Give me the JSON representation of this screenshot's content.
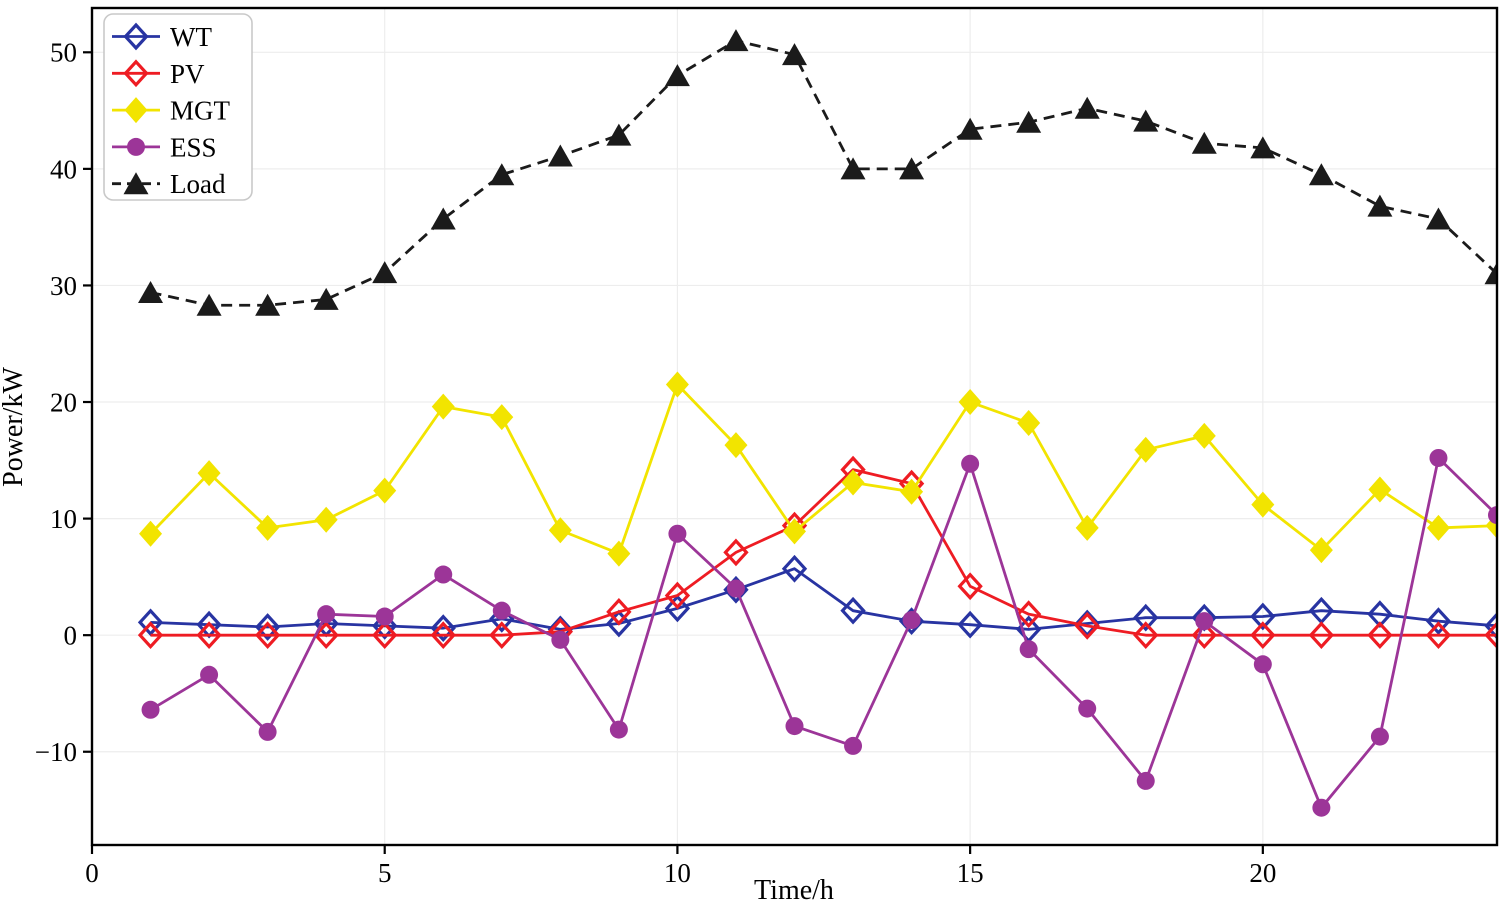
{
  "figure": {
    "type": "matplotlib-style line chart",
    "background": "#ffffff"
  },
  "chart_data": {
    "type": "line",
    "title": "",
    "xlabel": "Time/h",
    "ylabel": "Power/kW",
    "xlim": [
      0,
      24
    ],
    "ylim": [
      -18,
      53.8
    ],
    "xticks": [
      0,
      5,
      10,
      15,
      20
    ],
    "yticks": [
      -10,
      0,
      10,
      20,
      30,
      40,
      50
    ],
    "grid": true,
    "legend_position": "upper-left",
    "x": [
      1,
      2,
      3,
      4,
      5,
      6,
      7,
      8,
      9,
      10,
      11,
      12,
      13,
      14,
      15,
      16,
      17,
      18,
      19,
      20,
      21,
      22,
      23,
      24
    ],
    "series": [
      {
        "name": "WT",
        "color": "#2834a2",
        "marker": "diamond-open",
        "line": "solid",
        "values": [
          1.1,
          0.9,
          0.7,
          1.0,
          0.8,
          0.6,
          1.4,
          0.5,
          1.0,
          2.3,
          3.9,
          5.7,
          2.1,
          1.2,
          0.9,
          0.5,
          1.0,
          1.5,
          1.5,
          1.6,
          2.1,
          1.8,
          1.2,
          0.8
        ]
      },
      {
        "name": "PV",
        "color": "#ee1c23",
        "marker": "diamond-open",
        "line": "solid",
        "values": [
          0,
          0,
          0,
          0,
          0,
          0,
          0,
          0.3,
          2.0,
          3.4,
          7.1,
          9.4,
          14.2,
          13.0,
          4.2,
          1.8,
          0.8,
          0,
          0,
          0,
          0,
          0,
          0,
          0
        ]
      },
      {
        "name": "MGT",
        "color": "#f2e400",
        "marker": "diamond-filled",
        "line": "solid",
        "values": [
          8.7,
          13.9,
          9.2,
          9.9,
          12.4,
          19.6,
          18.7,
          9.0,
          7.0,
          21.5,
          16.3,
          8.9,
          13.1,
          12.3,
          20.0,
          18.2,
          9.2,
          15.9,
          17.1,
          11.2,
          7.3,
          12.5,
          9.2,
          9.4
        ]
      },
      {
        "name": "ESS",
        "color": "#9c3598",
        "marker": "circle-filled",
        "line": "solid",
        "values": [
          -6.4,
          -3.4,
          -8.3,
          1.8,
          1.6,
          5.2,
          2.1,
          -0.4,
          -8.1,
          8.7,
          4.0,
          -7.8,
          -9.5,
          1.3,
          14.7,
          -1.2,
          -6.3,
          -12.5,
          1.2,
          -2.5,
          -14.8,
          -8.7,
          15.2,
          10.3
        ]
      },
      {
        "name": "Load",
        "color": "#1b1b1b",
        "marker": "triangle-filled",
        "line": "dashed",
        "values": [
          29.4,
          28.3,
          28.3,
          28.8,
          31.1,
          35.7,
          39.5,
          41.1,
          42.9,
          48.0,
          51.0,
          49.8,
          40.0,
          40.0,
          43.4,
          44.0,
          45.2,
          44.1,
          42.2,
          41.8,
          39.5,
          36.8,
          35.7,
          31.0
        ]
      }
    ]
  },
  "style": {
    "grid_color": "#ededed",
    "spine_color": "#000000",
    "tick_label_minus_sign": "−"
  }
}
